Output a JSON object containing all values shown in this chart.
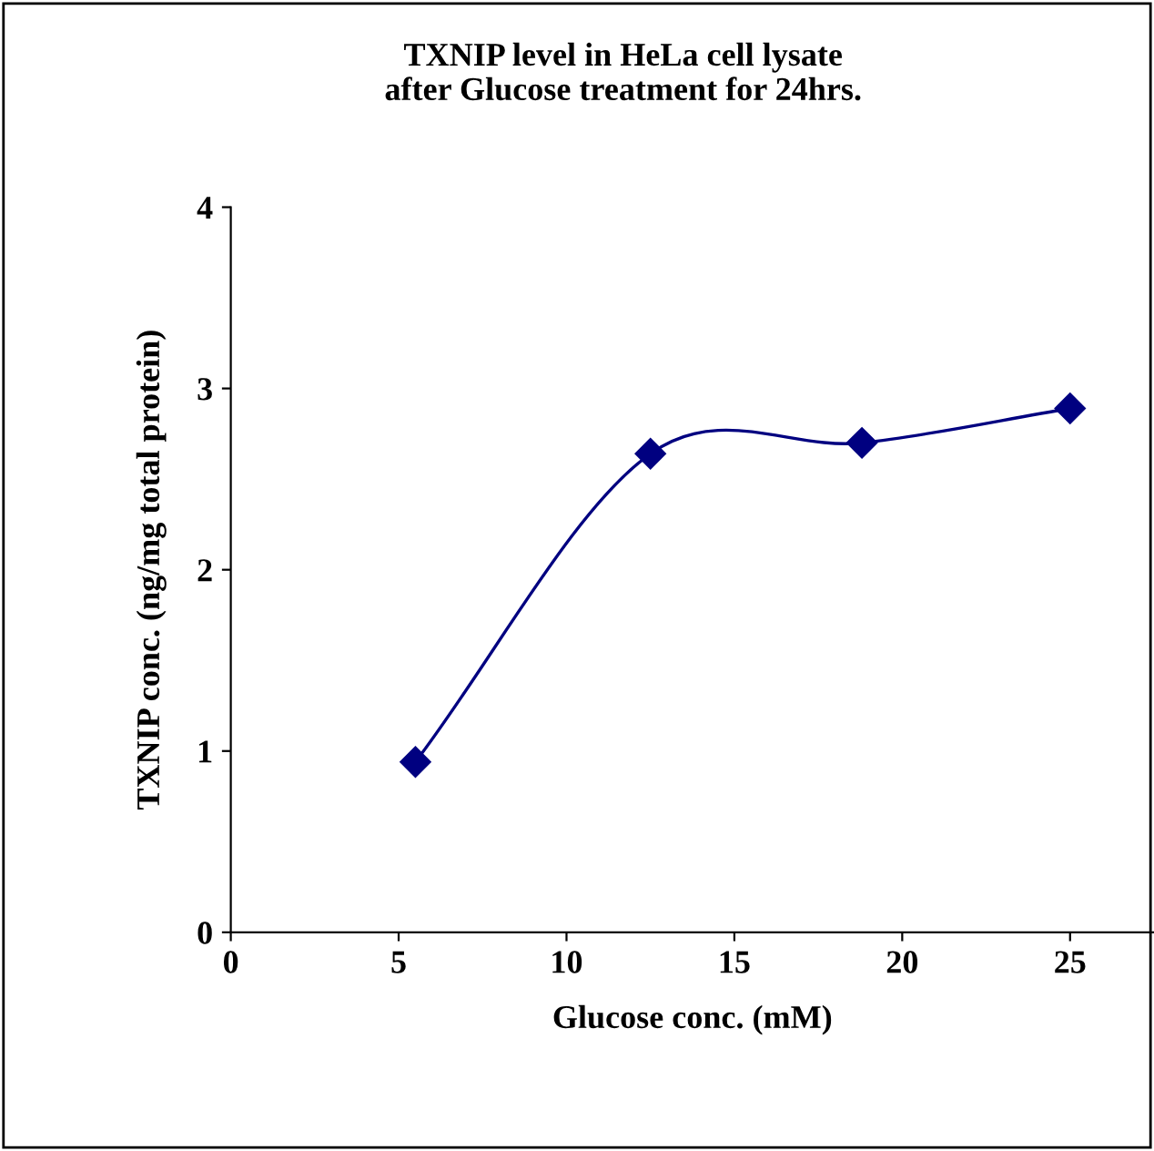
{
  "chart_data": {
    "type": "line",
    "title": "TXNIP level in HeLa cell lysate\nafter Glucose treatment for 24hrs.",
    "xlabel": "Glucose conc. (mM)",
    "ylabel": "TXNIP conc. (ng/mg total protein)",
    "x": [
      5.5,
      12.5,
      18.8,
      25
    ],
    "series": [
      {
        "color": "#000080",
        "values": [
          0.94,
          2.64,
          2.7,
          2.89
        ]
      }
    ],
    "xlim": [
      0,
      27.5
    ],
    "xticks": [
      0,
      5,
      10,
      15,
      20,
      25
    ],
    "ylim": [
      0,
      4
    ],
    "yticks": [
      0,
      1,
      2,
      3,
      4
    ],
    "grid": false,
    "legend": false,
    "marker": "diamond",
    "line_style": "solid"
  }
}
